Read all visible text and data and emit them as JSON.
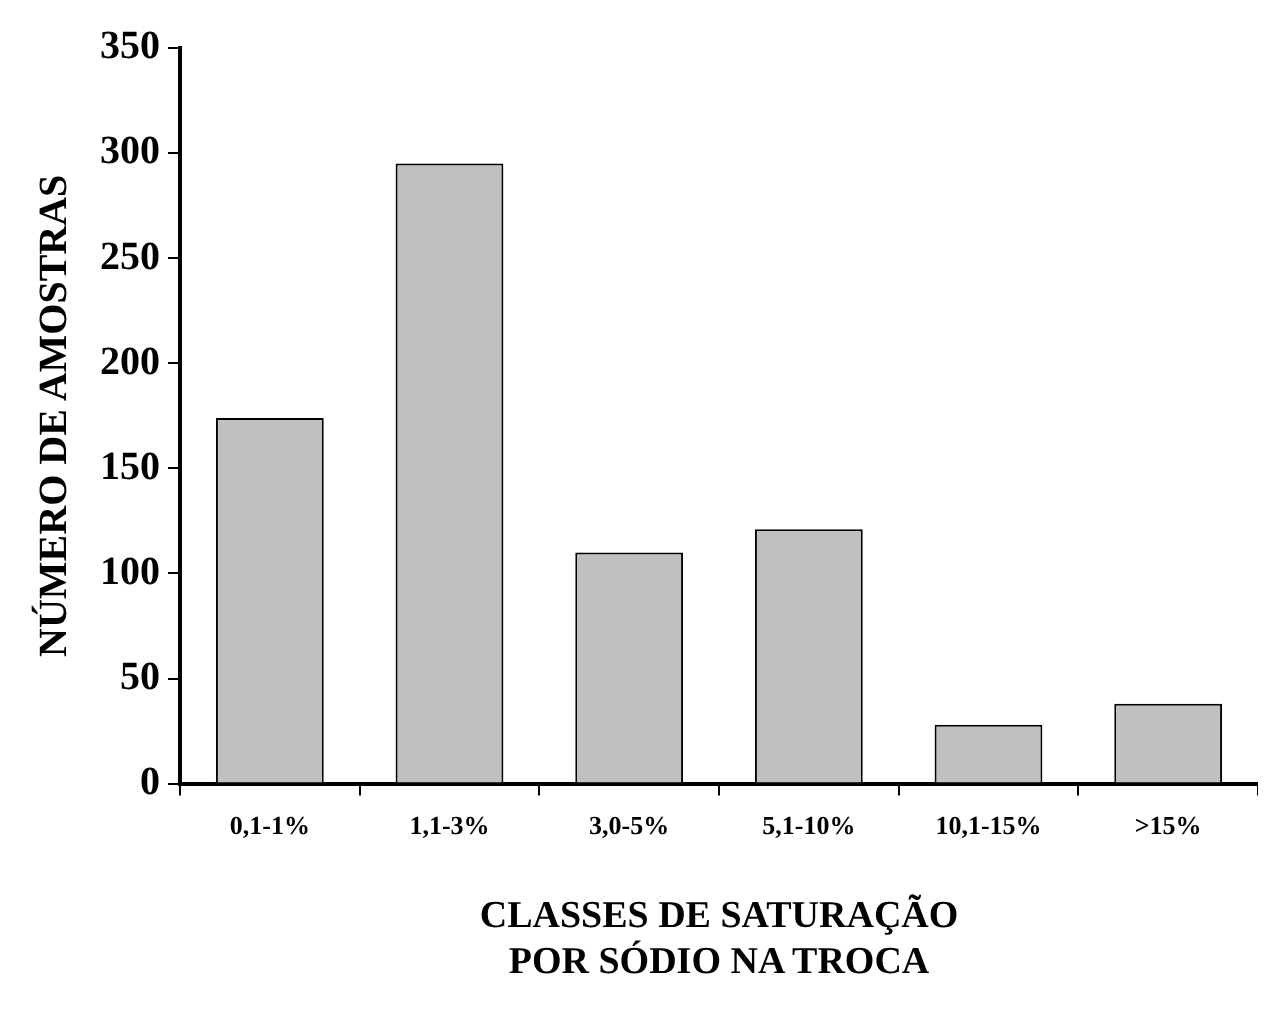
{
  "chart_data": {
    "type": "bar",
    "xlabel": "CLASSES DE SATURAÇÃO\nPOR SÓDIO NA TROCA",
    "ylabel": "NÚMERO DE AMOSTRAS",
    "categories": [
      "0,1-1%",
      "1,1-3%",
      "3,0-5%",
      "5,1-10%",
      "10,1-15%",
      ">15%"
    ],
    "values": [
      174,
      295,
      110,
      121,
      28,
      38
    ],
    "color": "#c0c0c0",
    "ylim": [
      0,
      350
    ],
    "yticks": [
      0,
      50,
      100,
      150,
      200,
      250,
      300,
      350
    ],
    "grid": false,
    "legend": false
  }
}
